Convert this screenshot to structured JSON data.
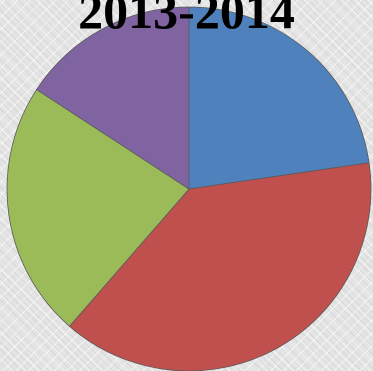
{
  "chart_data": {
    "type": "pie",
    "title": "2013-2014",
    "slices": [
      {
        "color": "#4f81bd",
        "value": 22.7
      },
      {
        "color": "#c0504d",
        "value": 38.7
      },
      {
        "color": "#9bbb59",
        "value": 22.8
      },
      {
        "color": "#8064a2",
        "value": 15.8
      }
    ],
    "start_angle_deg": 0,
    "direction": "clockwise",
    "legend": "none",
    "data_labels": "none"
  }
}
